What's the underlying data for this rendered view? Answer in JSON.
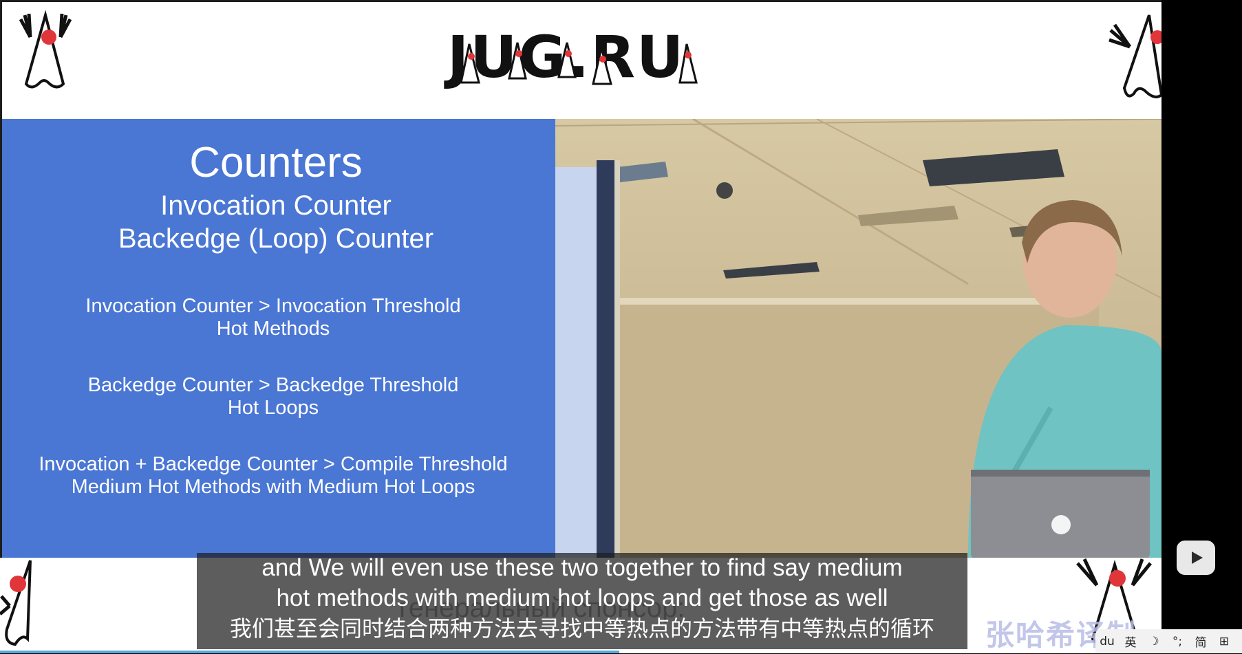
{
  "header": {
    "logo_text": "JUG.RU"
  },
  "slide": {
    "title": "Counters",
    "subtitle_lines": [
      "Invocation Counter",
      "Backedge (Loop) Counter"
    ],
    "rules": [
      {
        "line1": "Invocation Counter > Invocation Threshold",
        "line2": "Hot Methods"
      },
      {
        "line1": "Backedge Counter > Backedge Threshold",
        "line2": "Hot Loops"
      },
      {
        "line1": "Invocation + Backedge Counter > Compile Threshold",
        "line2": "Medium Hot Methods with Medium Hot Loops"
      }
    ]
  },
  "subtitles": {
    "en_line1": "and We will even use these two together to find say medium",
    "en_line2": "hot methods with medium hot loops and get those as well",
    "zh_line": "我们甚至会同时结合两种方法去寻找中等热点的方法带有中等热点的循环",
    "background_text": "генеральный спонсор:"
  },
  "watermark": {
    "text": "张哈希译制"
  },
  "controls": {
    "play_icon": "play-icon"
  },
  "ime": {
    "items": [
      {
        "icon": "baidu-paw-icon",
        "label": "du"
      },
      {
        "icon": "lang-icon",
        "label": "英"
      },
      {
        "icon": "moon-icon",
        "label": "☽"
      },
      {
        "icon": "punct-icon",
        "label": "°;"
      },
      {
        "icon": "simplified-icon",
        "label": "简"
      },
      {
        "icon": "grid-icon",
        "label": "⊞"
      }
    ]
  },
  "colors": {
    "slide_bg": "#4a76d4",
    "subtitle_bg": "#1e1e1e",
    "accent_blue": "#5aa7d8"
  }
}
